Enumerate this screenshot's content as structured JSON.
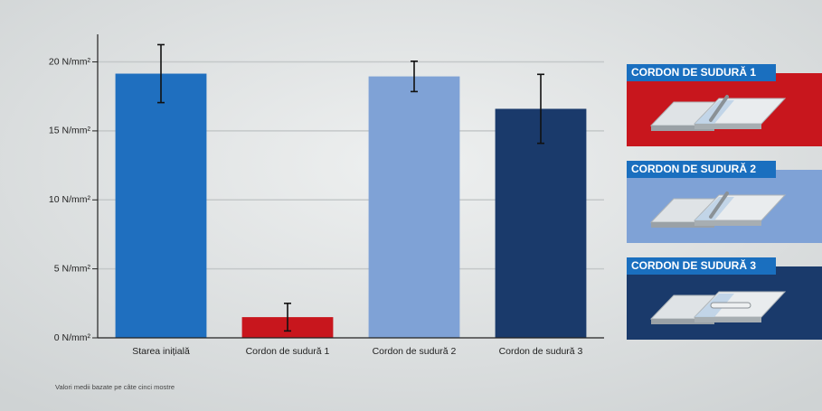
{
  "chart_data": {
    "type": "bar",
    "categories": [
      "Starea inițială",
      "Cordon de sudură 1",
      "Cordon de sudură 2",
      "Cordon de sudură 3"
    ],
    "values": [
      19.15,
      1.5,
      18.95,
      16.6
    ],
    "errors": [
      2.1,
      1.0,
      1.1,
      2.5
    ],
    "colors": [
      "#1f6fbf",
      "#c8161d",
      "#7fa2d6",
      "#1a3a6b"
    ],
    "ylim": [
      0,
      22
    ],
    "yticks": [
      {
        "value": 0,
        "label": "0 N/mm²"
      },
      {
        "value": 5,
        "label": "5 N/mm²"
      },
      {
        "value": 10,
        "label": "10 N/mm²"
      },
      {
        "value": 15,
        "label": "15 N/mm²"
      },
      {
        "value": 20,
        "label": "20 N/mm²"
      }
    ],
    "grid": true,
    "note": "Valori medii bazate pe câte cinci mostre",
    "panels": [
      "CORDON DE SUDURĂ 1",
      "CORDON DE SUDURĂ 2",
      "CORDON DE SUDURĂ 3"
    ]
  }
}
